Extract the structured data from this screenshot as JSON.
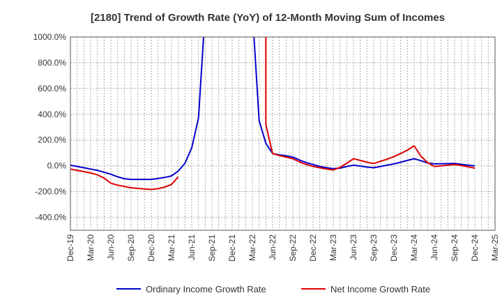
{
  "chart_data": {
    "type": "line",
    "title": "[2180]  Trend of Growth Rate (YoY) of 12-Month Moving Sum of Incomes",
    "xlabel": "",
    "ylabel": "",
    "ylim": [
      -500,
      1000
    ],
    "y_ticks": [
      1000,
      800,
      600,
      400,
      200,
      0,
      -200,
      -400
    ],
    "y_tick_labels": [
      "1000.0%",
      "800.0%",
      "600.0%",
      "400.0%",
      "200.0%",
      "0.0%",
      "-200.0%",
      "-400.0%"
    ],
    "x_range": [
      "2019-12",
      "2025-03"
    ],
    "x_tick_labels": [
      "Dec-19",
      "Mar-20",
      "Jun-20",
      "Sep-20",
      "Dec-20",
      "Mar-21",
      "Jun-21",
      "Sep-21",
      "Dec-21",
      "Mar-22",
      "Jun-22",
      "Sep-22",
      "Dec-22",
      "Mar-23",
      "Jun-23",
      "Sep-23",
      "Dec-23",
      "Mar-24",
      "Jun-24",
      "Sep-24",
      "Dec-24",
      "Mar-25"
    ],
    "grid": true,
    "legend_position": "bottom",
    "series": [
      {
        "name": "Ordinary Income Growth Rate",
        "color": "#0000cc",
        "points": [
          [
            "2019-12",
            5
          ],
          [
            "2020-01",
            -5
          ],
          [
            "2020-02",
            -15
          ],
          [
            "2020-03",
            -25
          ],
          [
            "2020-04",
            -35
          ],
          [
            "2020-05",
            -50
          ],
          [
            "2020-06",
            -65
          ],
          [
            "2020-07",
            -85
          ],
          [
            "2020-08",
            -100
          ],
          [
            "2020-09",
            -105
          ],
          [
            "2020-10",
            -105
          ],
          [
            "2020-11",
            -105
          ],
          [
            "2020-12",
            -105
          ],
          [
            "2021-01",
            -98
          ],
          [
            "2021-02",
            -90
          ],
          [
            "2021-03",
            -78
          ],
          [
            "2021-04",
            -40
          ],
          [
            "2021-05",
            20
          ],
          [
            "2021-06",
            140
          ],
          [
            "2021-07",
            370
          ],
          [
            "2021-08",
            1200
          ],
          [
            "2021-09",
            null
          ],
          [
            "2021-10",
            null
          ],
          [
            "2021-11",
            null
          ],
          [
            "2021-12",
            null
          ],
          [
            "2022-01",
            null
          ],
          [
            "2022-02",
            null
          ],
          [
            "2022-03",
            1200
          ],
          [
            "2022-04",
            350
          ],
          [
            "2022-05",
            175
          ],
          [
            "2022-06",
            95
          ],
          [
            "2022-07",
            85
          ],
          [
            "2022-08",
            78
          ],
          [
            "2022-09",
            68
          ],
          [
            "2022-10",
            45
          ],
          [
            "2022-11",
            25
          ],
          [
            "2022-12",
            10
          ],
          [
            "2023-01",
            -5
          ],
          [
            "2023-02",
            -15
          ],
          [
            "2023-03",
            -22
          ],
          [
            "2023-04",
            -18
          ],
          [
            "2023-05",
            -5
          ],
          [
            "2023-06",
            5
          ],
          [
            "2023-07",
            -2
          ],
          [
            "2023-08",
            -10
          ],
          [
            "2023-09",
            -15
          ],
          [
            "2023-10",
            -5
          ],
          [
            "2023-11",
            5
          ],
          [
            "2023-12",
            15
          ],
          [
            "2024-01",
            28
          ],
          [
            "2024-02",
            42
          ],
          [
            "2024-03",
            55
          ],
          [
            "2024-04",
            40
          ],
          [
            "2024-05",
            22
          ],
          [
            "2024-06",
            15
          ],
          [
            "2024-07",
            16
          ],
          [
            "2024-08",
            17
          ],
          [
            "2024-09",
            18
          ],
          [
            "2024-10",
            12
          ],
          [
            "2024-11",
            5
          ],
          [
            "2024-12",
            0
          ]
        ]
      },
      {
        "name": "Net Income Growth Rate",
        "color": "#dd0000",
        "points": [
          [
            "2019-12",
            -25
          ],
          [
            "2020-01",
            -35
          ],
          [
            "2020-02",
            -45
          ],
          [
            "2020-03",
            -55
          ],
          [
            "2020-04",
            -70
          ],
          [
            "2020-05",
            -95
          ],
          [
            "2020-06",
            -135
          ],
          [
            "2020-07",
            -150
          ],
          [
            "2020-08",
            -160
          ],
          [
            "2020-09",
            -170
          ],
          [
            "2020-10",
            -175
          ],
          [
            "2020-11",
            -180
          ],
          [
            "2020-12",
            -183
          ],
          [
            "2021-01",
            -177
          ],
          [
            "2021-02",
            -165
          ],
          [
            "2021-03",
            -145
          ],
          [
            "2021-04",
            -85
          ],
          [
            "2021-05",
            null
          ],
          [
            "2021-06",
            null
          ],
          [
            "2021-07",
            null
          ],
          [
            "2021-08",
            null
          ],
          [
            "2021-09",
            null
          ],
          [
            "2021-10",
            null
          ],
          [
            "2021-11",
            null
          ],
          [
            "2021-12",
            null
          ],
          [
            "2022-01",
            null
          ],
          [
            "2022-02",
            null
          ],
          [
            "2022-03",
            null
          ],
          [
            "2022-04",
            null
          ],
          [
            "2022-05",
            1200
          ],
          [
            "2022-05",
            320
          ],
          [
            "2022-06",
            95
          ],
          [
            "2022-07",
            80
          ],
          [
            "2022-08",
            68
          ],
          [
            "2022-09",
            55
          ],
          [
            "2022-10",
            30
          ],
          [
            "2022-11",
            10
          ],
          [
            "2022-12",
            -5
          ],
          [
            "2023-01",
            -15
          ],
          [
            "2023-02",
            -25
          ],
          [
            "2023-03",
            -32
          ],
          [
            "2023-04",
            -12
          ],
          [
            "2023-05",
            20
          ],
          [
            "2023-06",
            55
          ],
          [
            "2023-07",
            42
          ],
          [
            "2023-08",
            28
          ],
          [
            "2023-09",
            18
          ],
          [
            "2023-10",
            35
          ],
          [
            "2023-11",
            52
          ],
          [
            "2023-12",
            72
          ],
          [
            "2024-01",
            95
          ],
          [
            "2024-02",
            122
          ],
          [
            "2024-03",
            155
          ],
          [
            "2024-04",
            75
          ],
          [
            "2024-05",
            25
          ],
          [
            "2024-06",
            -5
          ],
          [
            "2024-07",
            0
          ],
          [
            "2024-08",
            5
          ],
          [
            "2024-09",
            10
          ],
          [
            "2024-10",
            3
          ],
          [
            "2024-11",
            -8
          ],
          [
            "2024-12",
            -18
          ]
        ]
      }
    ]
  }
}
